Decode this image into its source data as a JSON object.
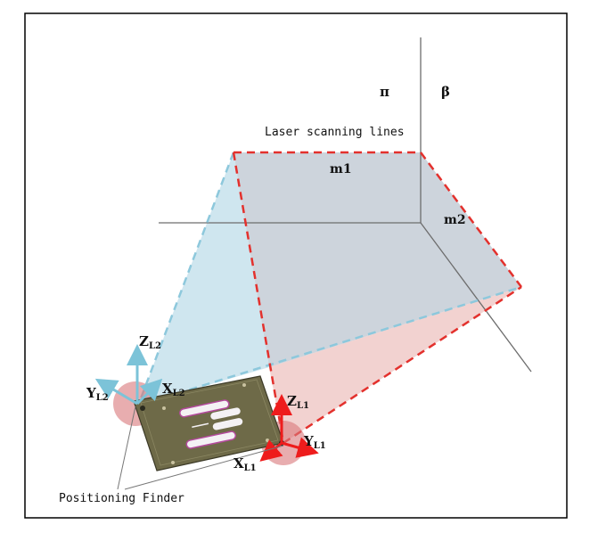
{
  "labels": {
    "pi": "π",
    "beta": "β",
    "laser": "Laser scanning lines",
    "m1": "m1",
    "m2": "m2",
    "positioning": "Positioning Finder"
  },
  "axes_l2": {
    "z_main": "Z",
    "z_sub": "L2",
    "y_main": "Y",
    "y_sub": "L2",
    "x_main": "X",
    "x_sub": "L2"
  },
  "axes_l1": {
    "z_main": "Z",
    "z_sub": "L1",
    "y_main": "Y",
    "y_sub": "L1",
    "x_main": "X",
    "x_sub": "L1"
  },
  "colors": {
    "blue_plane": "#cfe6ef",
    "gray_plane": "#c8cfd8",
    "pink_plane": "#f2d2d0",
    "blue_dash": "#8dc8dc",
    "red_dash": "#e3312d",
    "axis_blue": "#7cc3d8",
    "axis_red": "#ee1c1c",
    "finder_disc": "#d9767a",
    "board": "#6e6a48"
  }
}
